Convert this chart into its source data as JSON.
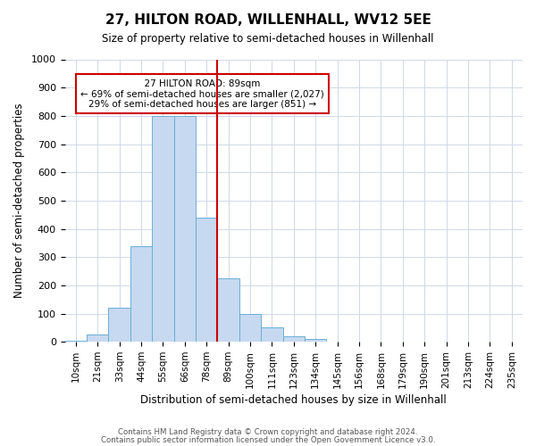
{
  "title": "27, HILTON ROAD, WILLENHALL, WV12 5EE",
  "subtitle": "Size of property relative to semi-detached houses in Willenhall",
  "xlabel": "Distribution of semi-detached houses by size in Willenhall",
  "ylabel": "Number of semi-detached properties",
  "bin_labels": [
    "10sqm",
    "21sqm",
    "33sqm",
    "44sqm",
    "55sqm",
    "66sqm",
    "78sqm",
    "89sqm",
    "100sqm",
    "111sqm",
    "123sqm",
    "134sqm",
    "145sqm",
    "156sqm",
    "168sqm",
    "179sqm",
    "190sqm",
    "201sqm",
    "213sqm",
    "224sqm",
    "235sqm"
  ],
  "bin_values": [
    5,
    25,
    120,
    340,
    800,
    800,
    440,
    225,
    100,
    50,
    20,
    10,
    0,
    0,
    0,
    0,
    0,
    0,
    0,
    0,
    0
  ],
  "highlight_index": 7,
  "bar_color": "#c6d9f0",
  "bar_edge_color": "#6baed6",
  "vline_color": "#cc0000",
  "annotation_box_color": "#cc0000",
  "ylim": [
    0,
    1000
  ],
  "yticks": [
    0,
    100,
    200,
    300,
    400,
    500,
    600,
    700,
    800,
    900,
    1000
  ],
  "annotation_title": "27 HILTON ROAD: 89sqm",
  "annotation_line1": "← 69% of semi-detached houses are smaller (2,027)",
  "annotation_line2": "29% of semi-detached houses are larger (851) →",
  "footer1": "Contains HM Land Registry data © Crown copyright and database right 2024.",
  "footer2": "Contains public sector information licensed under the Open Government Licence v3.0.",
  "background_color": "#ffffff",
  "grid_color": "#d0d8e8"
}
